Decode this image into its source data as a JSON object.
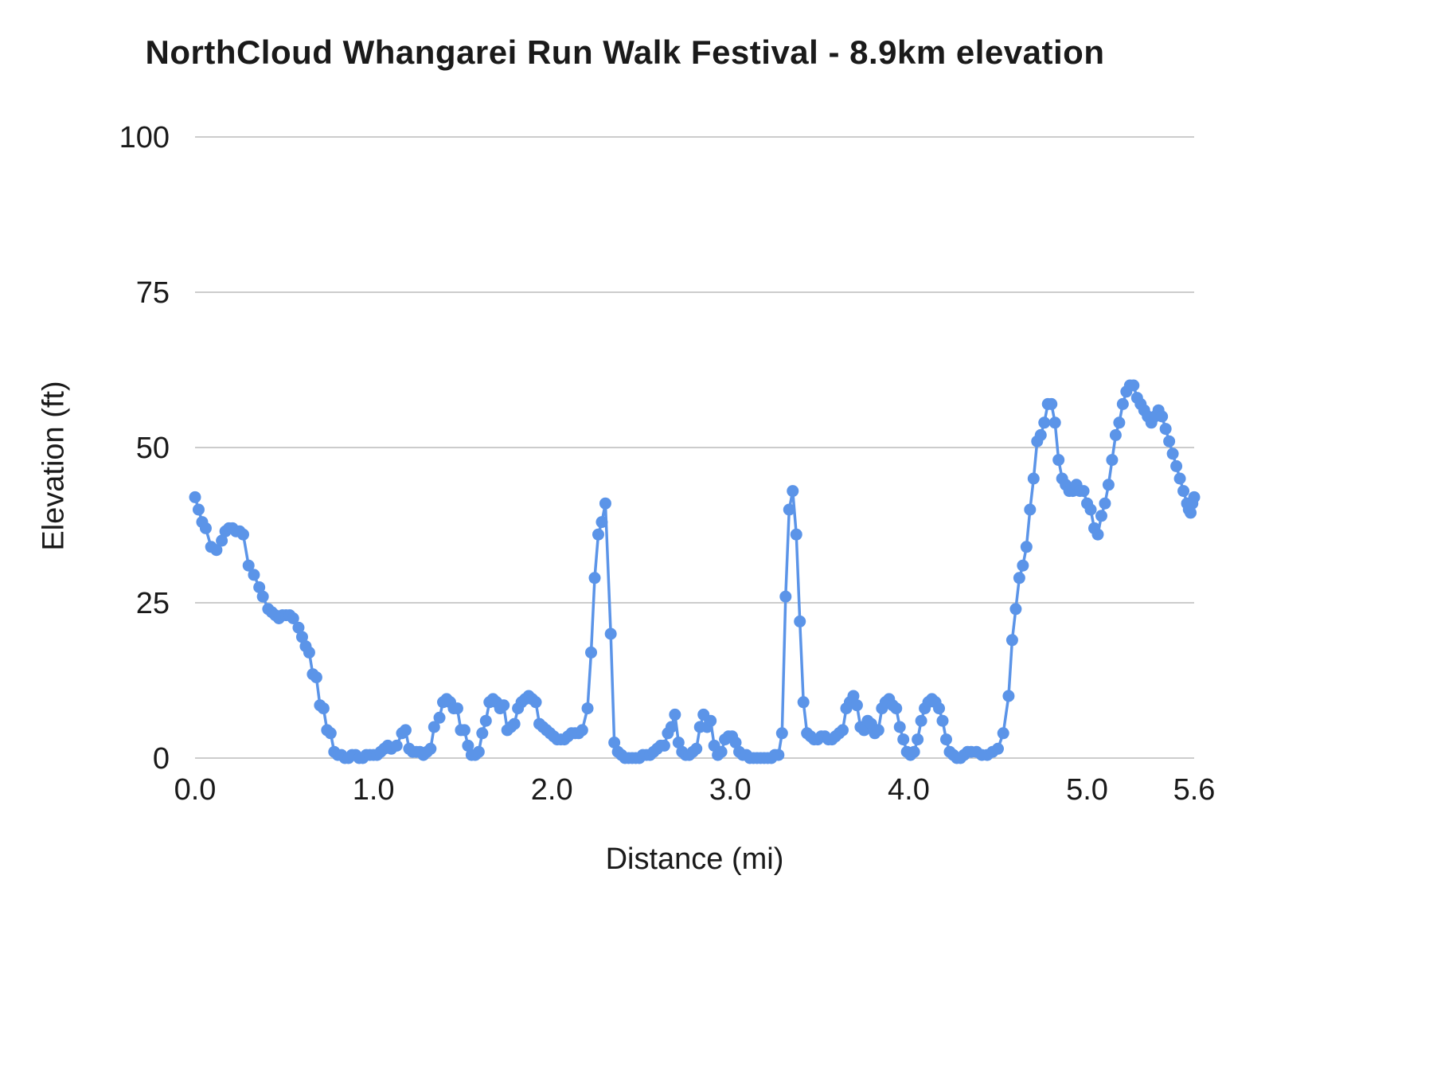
{
  "page": {
    "background": "#ffffff"
  },
  "chart_data": {
    "type": "line",
    "title": "NorthCloud Whangarei Run Walk Festival - 8.9km elevation",
    "xlabel": "Distance (mi)",
    "ylabel": "Elevation (ft)",
    "xlim": [
      0,
      5.6
    ],
    "ylim": [
      0,
      100
    ],
    "grid": "horizontal",
    "legend": "none",
    "line_color": "#5b94e8",
    "grid_color": "#cccccc",
    "marker": "circle",
    "x_ticks": [
      {
        "v": 0.0,
        "label": "0.0"
      },
      {
        "v": 1.0,
        "label": "1.0"
      },
      {
        "v": 2.0,
        "label": "2.0"
      },
      {
        "v": 3.0,
        "label": "3.0"
      },
      {
        "v": 4.0,
        "label": "4.0"
      },
      {
        "v": 5.0,
        "label": "5.0"
      },
      {
        "v": 5.6,
        "label": "5.6"
      }
    ],
    "y_ticks": [
      {
        "v": 0,
        "label": "0"
      },
      {
        "v": 25,
        "label": "25"
      },
      {
        "v": 50,
        "label": "50"
      },
      {
        "v": 75,
        "label": "75"
      },
      {
        "v": 100,
        "label": "100"
      }
    ],
    "points": [
      [
        0.0,
        42
      ],
      [
        0.02,
        40
      ],
      [
        0.04,
        38
      ],
      [
        0.06,
        37
      ],
      [
        0.09,
        34
      ],
      [
        0.12,
        33.5
      ],
      [
        0.15,
        35
      ],
      [
        0.17,
        36.5
      ],
      [
        0.19,
        37
      ],
      [
        0.21,
        37
      ],
      [
        0.23,
        36.5
      ],
      [
        0.25,
        36.5
      ],
      [
        0.27,
        36
      ],
      [
        0.3,
        31
      ],
      [
        0.33,
        29.5
      ],
      [
        0.36,
        27.5
      ],
      [
        0.38,
        26
      ],
      [
        0.41,
        24
      ],
      [
        0.43,
        23.5
      ],
      [
        0.45,
        23
      ],
      [
        0.47,
        22.5
      ],
      [
        0.49,
        23
      ],
      [
        0.51,
        23
      ],
      [
        0.53,
        23
      ],
      [
        0.55,
        22.5
      ],
      [
        0.58,
        21
      ],
      [
        0.6,
        19.5
      ],
      [
        0.62,
        18
      ],
      [
        0.64,
        17
      ],
      [
        0.66,
        13.5
      ],
      [
        0.68,
        13
      ],
      [
        0.7,
        8.5
      ],
      [
        0.72,
        8
      ],
      [
        0.74,
        4.5
      ],
      [
        0.76,
        4
      ],
      [
        0.78,
        1
      ],
      [
        0.8,
        0.5
      ],
      [
        0.82,
        0.5
      ],
      [
        0.84,
        0
      ],
      [
        0.86,
        0
      ],
      [
        0.88,
        0.5
      ],
      [
        0.9,
        0.5
      ],
      [
        0.92,
        0
      ],
      [
        0.94,
        0
      ],
      [
        0.96,
        0.5
      ],
      [
        0.98,
        0.5
      ],
      [
        1.0,
        0.5
      ],
      [
        1.02,
        0.5
      ],
      [
        1.04,
        1
      ],
      [
        1.06,
        1.5
      ],
      [
        1.08,
        2
      ],
      [
        1.1,
        1.5
      ],
      [
        1.13,
        2
      ],
      [
        1.16,
        4
      ],
      [
        1.18,
        4.5
      ],
      [
        1.2,
        1.5
      ],
      [
        1.22,
        1
      ],
      [
        1.24,
        1
      ],
      [
        1.26,
        1
      ],
      [
        1.28,
        0.5
      ],
      [
        1.3,
        1
      ],
      [
        1.32,
        1.5
      ],
      [
        1.34,
        5
      ],
      [
        1.37,
        6.5
      ],
      [
        1.39,
        9
      ],
      [
        1.41,
        9.5
      ],
      [
        1.43,
        9
      ],
      [
        1.45,
        8
      ],
      [
        1.47,
        8
      ],
      [
        1.49,
        4.5
      ],
      [
        1.51,
        4.5
      ],
      [
        1.53,
        2
      ],
      [
        1.55,
        0.5
      ],
      [
        1.57,
        0.5
      ],
      [
        1.59,
        1
      ],
      [
        1.61,
        4
      ],
      [
        1.63,
        6
      ],
      [
        1.65,
        9
      ],
      [
        1.67,
        9.5
      ],
      [
        1.69,
        9
      ],
      [
        1.71,
        8
      ],
      [
        1.73,
        8.5
      ],
      [
        1.75,
        4.5
      ],
      [
        1.77,
        5
      ],
      [
        1.79,
        5.5
      ],
      [
        1.81,
        8
      ],
      [
        1.83,
        9
      ],
      [
        1.85,
        9.5
      ],
      [
        1.87,
        10
      ],
      [
        1.89,
        9.5
      ],
      [
        1.91,
        9
      ],
      [
        1.93,
        5.5
      ],
      [
        1.95,
        5
      ],
      [
        1.97,
        4.5
      ],
      [
        1.99,
        4
      ],
      [
        2.01,
        3.5
      ],
      [
        2.03,
        3
      ],
      [
        2.05,
        3
      ],
      [
        2.07,
        3
      ],
      [
        2.09,
        3.5
      ],
      [
        2.11,
        4
      ],
      [
        2.13,
        4
      ],
      [
        2.15,
        4
      ],
      [
        2.17,
        4.5
      ],
      [
        2.2,
        8
      ],
      [
        2.22,
        17
      ],
      [
        2.24,
        29
      ],
      [
        2.26,
        36
      ],
      [
        2.28,
        38
      ],
      [
        2.3,
        41
      ],
      [
        2.33,
        20
      ],
      [
        2.35,
        2.5
      ],
      [
        2.37,
        1
      ],
      [
        2.39,
        0.5
      ],
      [
        2.41,
        0
      ],
      [
        2.43,
        0
      ],
      [
        2.45,
        0
      ],
      [
        2.47,
        0
      ],
      [
        2.49,
        0
      ],
      [
        2.51,
        0.5
      ],
      [
        2.53,
        0.5
      ],
      [
        2.55,
        0.5
      ],
      [
        2.57,
        1
      ],
      [
        2.59,
        1.5
      ],
      [
        2.61,
        2
      ],
      [
        2.63,
        2
      ],
      [
        2.65,
        4
      ],
      [
        2.67,
        5
      ],
      [
        2.69,
        7
      ],
      [
        2.71,
        2.5
      ],
      [
        2.73,
        1
      ],
      [
        2.75,
        0.5
      ],
      [
        2.77,
        0.5
      ],
      [
        2.79,
        1
      ],
      [
        2.81,
        1.5
      ],
      [
        2.83,
        5
      ],
      [
        2.85,
        7
      ],
      [
        2.87,
        5
      ],
      [
        2.89,
        6
      ],
      [
        2.91,
        2
      ],
      [
        2.93,
        0.5
      ],
      [
        2.95,
        1
      ],
      [
        2.97,
        3
      ],
      [
        2.99,
        3.5
      ],
      [
        3.01,
        3.5
      ],
      [
        3.03,
        2.5
      ],
      [
        3.05,
        1
      ],
      [
        3.07,
        0.5
      ],
      [
        3.09,
        0.5
      ],
      [
        3.11,
        0
      ],
      [
        3.13,
        0
      ],
      [
        3.15,
        0
      ],
      [
        3.17,
        0
      ],
      [
        3.19,
        0
      ],
      [
        3.21,
        0
      ],
      [
        3.23,
        0
      ],
      [
        3.25,
        0.5
      ],
      [
        3.27,
        0.5
      ],
      [
        3.29,
        4
      ],
      [
        3.31,
        26
      ],
      [
        3.33,
        40
      ],
      [
        3.35,
        43
      ],
      [
        3.37,
        36
      ],
      [
        3.39,
        22
      ],
      [
        3.41,
        9
      ],
      [
        3.43,
        4
      ],
      [
        3.45,
        3.5
      ],
      [
        3.47,
        3
      ],
      [
        3.49,
        3
      ],
      [
        3.51,
        3.5
      ],
      [
        3.53,
        3.5
      ],
      [
        3.55,
        3
      ],
      [
        3.57,
        3
      ],
      [
        3.59,
        3.5
      ],
      [
        3.61,
        4
      ],
      [
        3.63,
        4.5
      ],
      [
        3.65,
        8
      ],
      [
        3.67,
        9
      ],
      [
        3.69,
        10
      ],
      [
        3.71,
        8.5
      ],
      [
        3.73,
        5
      ],
      [
        3.75,
        4.5
      ],
      [
        3.77,
        6
      ],
      [
        3.79,
        5.5
      ],
      [
        3.81,
        4
      ],
      [
        3.83,
        4.5
      ],
      [
        3.85,
        8
      ],
      [
        3.87,
        9
      ],
      [
        3.89,
        9.5
      ],
      [
        3.91,
        8.5
      ],
      [
        3.93,
        8
      ],
      [
        3.95,
        5
      ],
      [
        3.97,
        3
      ],
      [
        3.99,
        1
      ],
      [
        4.01,
        0.5
      ],
      [
        4.03,
        1
      ],
      [
        4.05,
        3
      ],
      [
        4.07,
        6
      ],
      [
        4.09,
        8
      ],
      [
        4.11,
        9
      ],
      [
        4.13,
        9.5
      ],
      [
        4.15,
        9
      ],
      [
        4.17,
        8
      ],
      [
        4.19,
        6
      ],
      [
        4.21,
        3
      ],
      [
        4.23,
        1
      ],
      [
        4.25,
        0.5
      ],
      [
        4.27,
        0
      ],
      [
        4.29,
        0
      ],
      [
        4.31,
        0.5
      ],
      [
        4.33,
        1
      ],
      [
        4.35,
        1
      ],
      [
        4.38,
        1
      ],
      [
        4.41,
        0.5
      ],
      [
        4.44,
        0.5
      ],
      [
        4.47,
        1
      ],
      [
        4.5,
        1.5
      ],
      [
        4.53,
        4
      ],
      [
        4.56,
        10
      ],
      [
        4.58,
        19
      ],
      [
        4.6,
        24
      ],
      [
        4.62,
        29
      ],
      [
        4.64,
        31
      ],
      [
        4.66,
        34
      ],
      [
        4.68,
        40
      ],
      [
        4.7,
        45
      ],
      [
        4.72,
        51
      ],
      [
        4.74,
        52
      ],
      [
        4.76,
        54
      ],
      [
        4.78,
        57
      ],
      [
        4.8,
        57
      ],
      [
        4.82,
        54
      ],
      [
        4.84,
        48
      ],
      [
        4.86,
        45
      ],
      [
        4.88,
        44
      ],
      [
        4.9,
        43
      ],
      [
        4.92,
        43
      ],
      [
        4.94,
        44
      ],
      [
        4.96,
        43
      ],
      [
        4.98,
        43
      ],
      [
        5.0,
        41
      ],
      [
        5.02,
        40
      ],
      [
        5.04,
        37
      ],
      [
        5.06,
        36
      ],
      [
        5.08,
        39
      ],
      [
        5.1,
        41
      ],
      [
        5.12,
        44
      ],
      [
        5.14,
        48
      ],
      [
        5.16,
        52
      ],
      [
        5.18,
        54
      ],
      [
        5.2,
        57
      ],
      [
        5.22,
        59
      ],
      [
        5.24,
        60
      ],
      [
        5.26,
        60
      ],
      [
        5.28,
        58
      ],
      [
        5.3,
        57
      ],
      [
        5.32,
        56
      ],
      [
        5.34,
        55
      ],
      [
        5.36,
        54
      ],
      [
        5.38,
        55
      ],
      [
        5.4,
        56
      ],
      [
        5.42,
        55
      ],
      [
        5.44,
        53
      ],
      [
        5.46,
        51
      ],
      [
        5.48,
        49
      ],
      [
        5.5,
        47
      ],
      [
        5.52,
        45
      ],
      [
        5.54,
        43
      ],
      [
        5.56,
        41
      ],
      [
        5.57,
        40
      ],
      [
        5.58,
        39.5
      ],
      [
        5.59,
        41
      ],
      [
        5.6,
        42
      ]
    ]
  }
}
